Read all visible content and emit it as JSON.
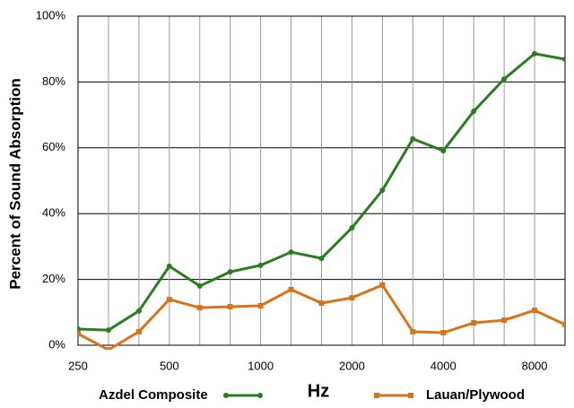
{
  "chart_data": {
    "type": "line",
    "x_label": "Hz",
    "y_label": "Percent of Sound Absorption",
    "categories": [
      "250",
      null,
      null,
      "500",
      null,
      null,
      "1000",
      null,
      null,
      "2000",
      null,
      null,
      "4000",
      null,
      null,
      "8000",
      null
    ],
    "series": [
      {
        "name": "Azdel Composite",
        "color": "#2a7d1f",
        "marker": "circle",
        "values": [
          4.9,
          4.6,
          10.4,
          24,
          18,
          22.3,
          24.3,
          28.3,
          26.4,
          35.7,
          47.1,
          62.7,
          59.1,
          71.1,
          80.9,
          88.6,
          86.9
        ]
      },
      {
        "name": "Lauan/Plywood",
        "color": "#d9731a",
        "marker": "square",
        "values": [
          3.5,
          -1.4,
          4.1,
          13.9,
          11.4,
          11.7,
          12,
          16.9,
          12.8,
          14.4,
          18.3,
          4.1,
          3.8,
          6.8,
          7.6,
          10.6,
          6.3
        ]
      }
    ],
    "ylim": [
      0,
      100
    ],
    "yticks": [
      {
        "value": 0,
        "label": "0%"
      },
      {
        "value": 20,
        "label": "20%"
      },
      {
        "value": 40,
        "label": "40%"
      },
      {
        "value": 60,
        "label": "60%"
      },
      {
        "value": 80,
        "label": "80%"
      },
      {
        "value": 100,
        "label": "100%"
      }
    ],
    "grid": true,
    "legend": "bottom"
  }
}
